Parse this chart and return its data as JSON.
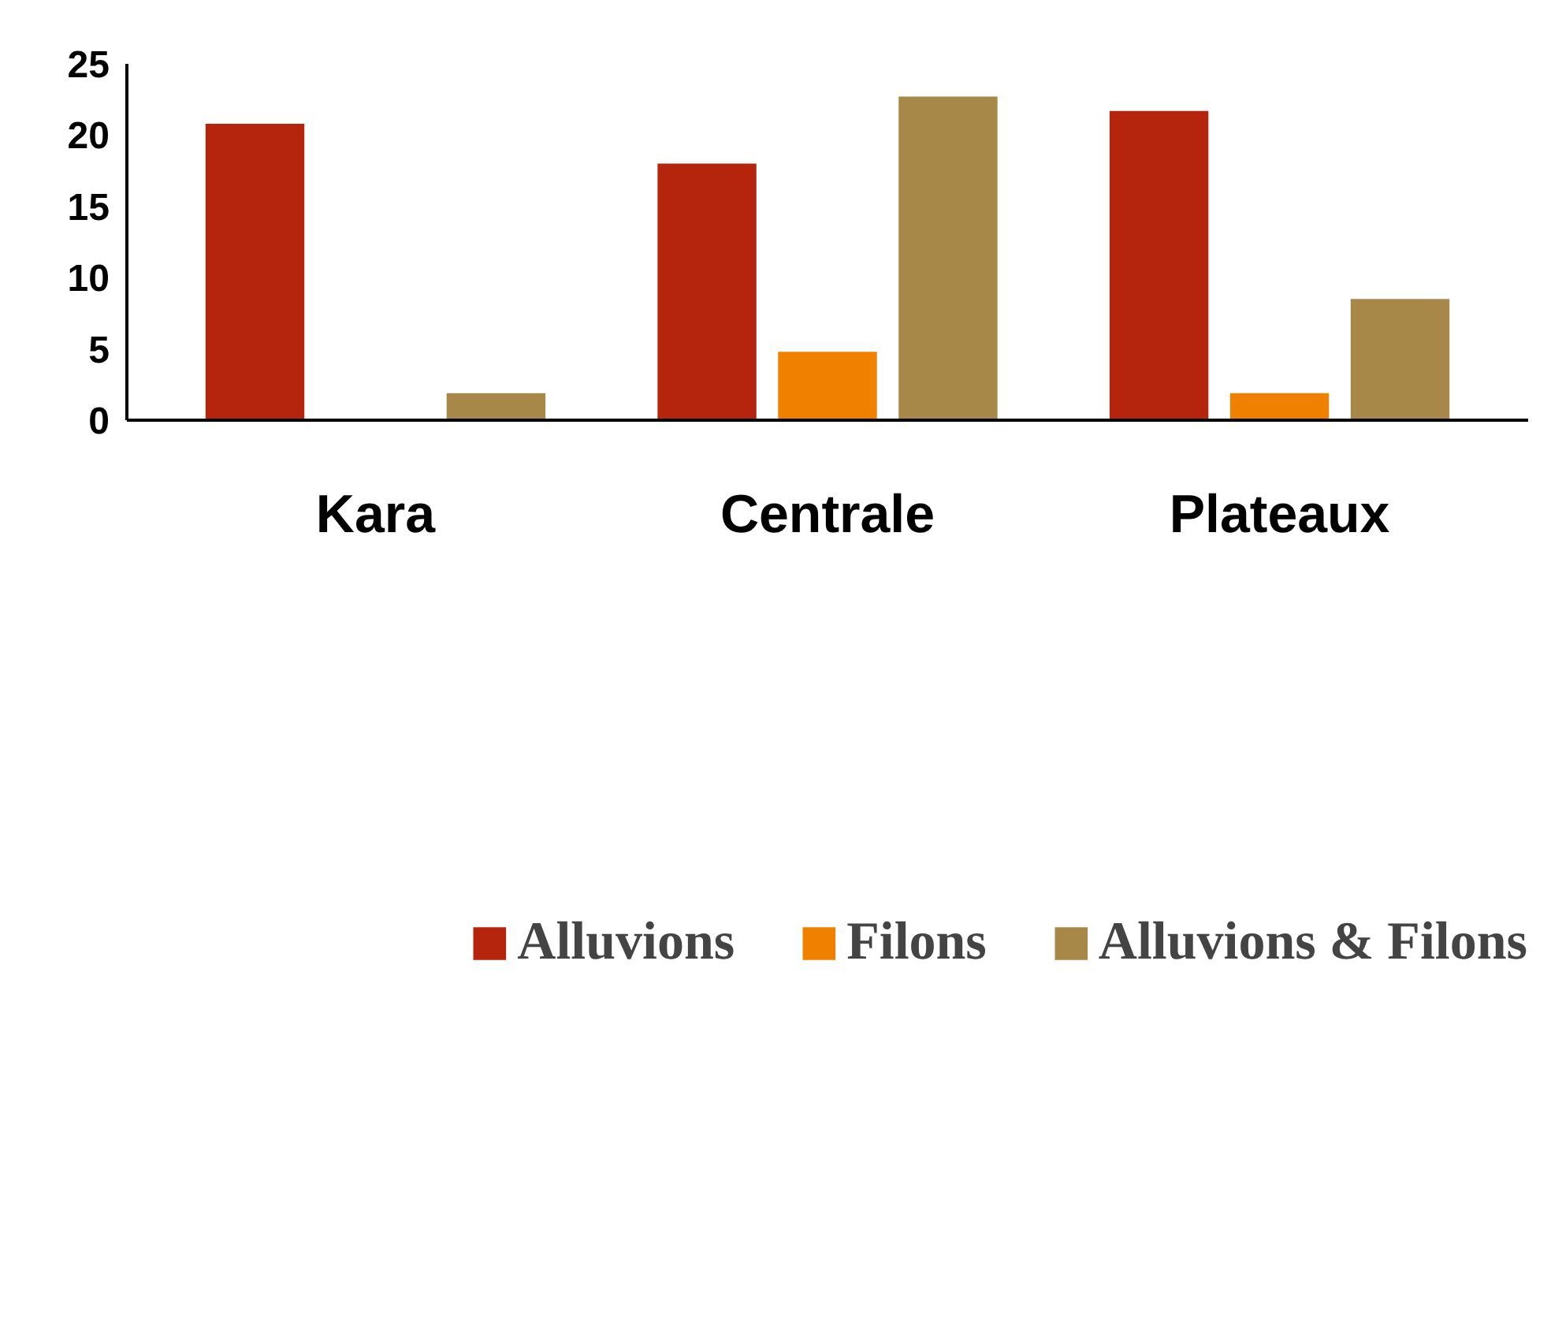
{
  "chart_data": {
    "type": "bar",
    "categories": [
      "Kara",
      "Centrale",
      "Plateaux"
    ],
    "series": [
      {
        "name": "Alluvions",
        "color": "#b5240c",
        "values": [
          20.8,
          18,
          21.7
        ]
      },
      {
        "name": "Filons",
        "color": "#f08000",
        "values": [
          null,
          4.8,
          1.9
        ]
      },
      {
        "name": "Alluvions & Filons",
        "color": "#a88848",
        "values": [
          1.9,
          22.7,
          8.5
        ]
      }
    ],
    "ylim": [
      0,
      25
    ],
    "yticks": [
      0,
      5,
      10,
      15,
      20,
      25
    ],
    "grid": false,
    "legend": "bottom"
  }
}
